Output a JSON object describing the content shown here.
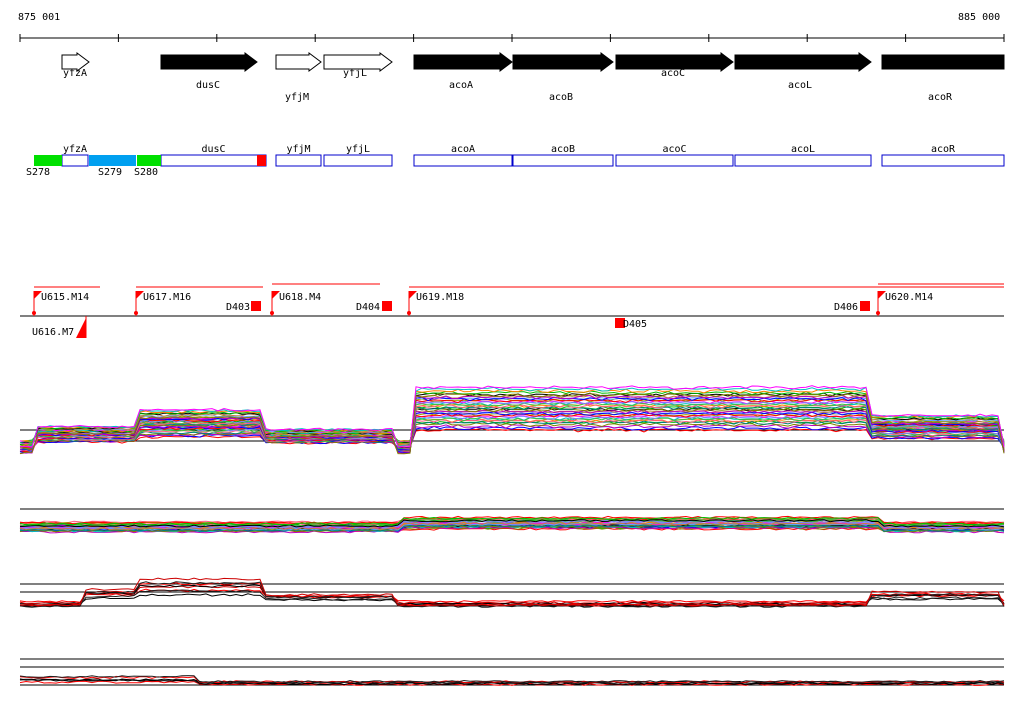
{
  "coords": {
    "start": "875 001",
    "end": "885 000"
  },
  "genes": [
    {
      "name": "yfzA",
      "strand": "+",
      "filled": false
    },
    {
      "name": "dusC",
      "strand": "+",
      "filled": true
    },
    {
      "name": "yfjM",
      "strand": "+",
      "filled": false
    },
    {
      "name": "yfjL",
      "strand": "+",
      "filled": false
    },
    {
      "name": "acoA",
      "strand": "+",
      "filled": true
    },
    {
      "name": "acoB",
      "strand": "+",
      "filled": true
    },
    {
      "name": "acoC",
      "strand": "+",
      "filled": true
    },
    {
      "name": "acoL",
      "strand": "+",
      "filled": true
    },
    {
      "name": "acoR",
      "strand": "+",
      "filled": true
    }
  ],
  "segments": [
    {
      "name": "S278",
      "color": "#00e000"
    },
    {
      "name": "S279",
      "color": "#00a0f0"
    },
    {
      "name": "S280",
      "color": "#00e000"
    }
  ],
  "segment_gene_labels": [
    "yfzA",
    "dusC",
    "yfjM",
    "yfjL",
    "acoA",
    "acoB",
    "acoC",
    "acoL",
    "acoR"
  ],
  "upshifts": [
    "U615.M14",
    "U616.M7",
    "U617.M16",
    "U618.M4",
    "U619.M18",
    "U620.M14"
  ],
  "downshifts": [
    "D403",
    "D404",
    "D405",
    "D406"
  ],
  "colors": {
    "gene_outline": "#0000cc",
    "marker": "#ff0000",
    "axis": "#000000"
  }
}
